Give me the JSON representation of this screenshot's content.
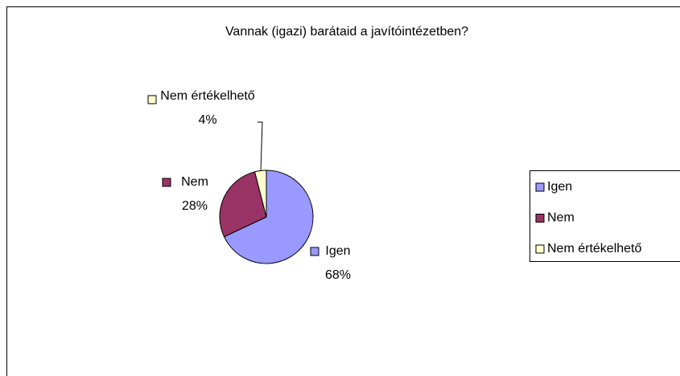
{
  "chart_data": {
    "type": "pie",
    "title": "Vannak (igazi) barátaid a javítóintézetben?",
    "categories": [
      "Igen",
      "Nem",
      "Nem értékelhető"
    ],
    "values": [
      68,
      28,
      4
    ],
    "value_labels": [
      "68%",
      "28%",
      "4%"
    ],
    "colors": [
      "#9999ff",
      "#993366",
      "#ffffcc"
    ],
    "legend": "right"
  }
}
